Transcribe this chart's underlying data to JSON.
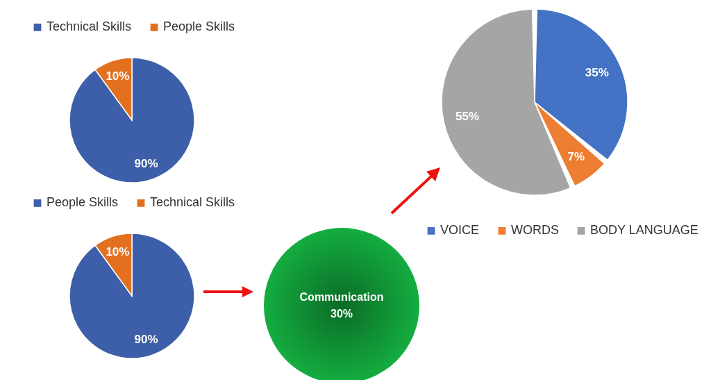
{
  "chart_data": [
    {
      "type": "pie",
      "categories": [
        "Technical Skills",
        "People Skills"
      ],
      "values": [
        90,
        10
      ],
      "value_labels": [
        "90%",
        "10%"
      ],
      "colors": [
        "#3d5ea8",
        "#e2701f"
      ],
      "legend": "top"
    },
    {
      "type": "pie",
      "categories": [
        "People Skills",
        "Technical Skills"
      ],
      "values": [
        90,
        10
      ],
      "value_labels": [
        "90%",
        "10%"
      ],
      "colors": [
        "#3d5ea8",
        "#e2701f"
      ],
      "legend": "top"
    },
    {
      "type": "other",
      "annotations": [
        "Communication",
        "30%"
      ],
      "colors": [
        "#0b6b27",
        "#14ad40"
      ]
    },
    {
      "type": "pie",
      "categories": [
        "VOICE",
        "WORDS",
        "BODY LANGUAGE"
      ],
      "values": [
        35,
        7,
        55
      ],
      "value_labels": [
        "35%",
        "7%",
        "55%"
      ],
      "colors": [
        "#4472c4",
        "#ed7d31",
        "#a5a5a5"
      ],
      "legend": "bottom"
    }
  ]
}
